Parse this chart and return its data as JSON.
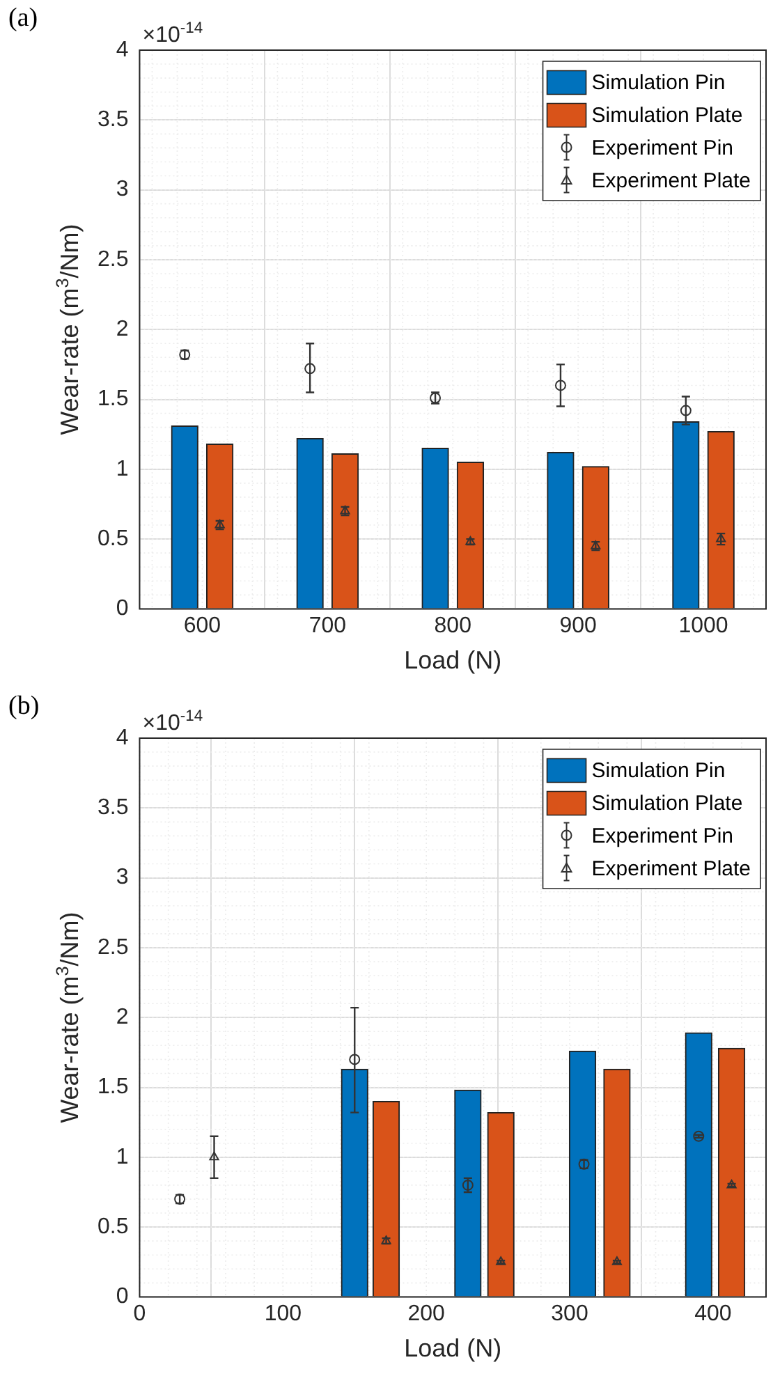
{
  "chart_data": [
    {
      "type": "bar",
      "title": "(a)",
      "xlabel": "Load (N)",
      "ylabel": "Wear-rate (m$^{3}$/Nm)",
      "annotations": [
        "×10$^{-14}$"
      ],
      "xlim": [
        550,
        1050
      ],
      "xticks": [
        600,
        700,
        800,
        900,
        1000
      ],
      "ylim": [
        0,
        4
      ],
      "yticks": [
        0,
        0.5,
        1,
        1.5,
        2,
        2.5,
        3,
        3.5,
        4
      ],
      "grid": true,
      "legend": "top right",
      "series": [
        {
          "name": "Simulation Pin",
          "color": "#0072bd",
          "x": [
            586,
            686,
            786,
            886,
            986
          ],
          "values": [
            1.31,
            1.22,
            1.15,
            1.12,
            1.34
          ]
        },
        {
          "name": "Simulation Plate",
          "color": "#d95319",
          "x": [
            614,
            714,
            814,
            914,
            1014
          ],
          "values": [
            1.18,
            1.11,
            1.05,
            1.02,
            1.27
          ]
        },
        {
          "name": "Experiment Pin",
          "type": "scatter",
          "marker": "circle",
          "color": "#333333",
          "x": [
            586,
            686,
            786,
            886,
            986
          ],
          "values": [
            1.82,
            1.72,
            1.51,
            1.6,
            1.42
          ],
          "errors": [
            0.03,
            [
              1.55,
              1.9
            ],
            0.04,
            [
              1.45,
              1.75
            ],
            0.1
          ]
        },
        {
          "name": "Experiment Plate",
          "type": "scatter",
          "marker": "triangle",
          "color": "#333333",
          "x": [
            614,
            714,
            814,
            914,
            1014
          ],
          "values": [
            0.6,
            0.7,
            0.48,
            0.45,
            0.5
          ],
          "errors": [
            0.03,
            0.03,
            0.02,
            0.03,
            0.04
          ]
        }
      ]
    },
    {
      "type": "bar",
      "title": "(b)",
      "xlabel": "Load (N)",
      "ylabel": "Wear-rate (m$^{3}$/Nm)",
      "annotations": [
        "×10$^{-14}$"
      ],
      "xlim": [
        0,
        437
      ],
      "xticks": [
        0,
        100,
        200,
        300,
        400
      ],
      "ylim": [
        0,
        4
      ],
      "yticks": [
        0,
        0.5,
        1,
        1.5,
        2,
        2.5,
        3,
        3.5,
        4
      ],
      "grid": true,
      "legend": "top right",
      "series": [
        {
          "name": "Simulation Pin",
          "color": "#0072bd",
          "x": [
            150,
            229,
            309,
            390
          ],
          "values": [
            1.63,
            1.48,
            1.76,
            1.89
          ]
        },
        {
          "name": "Simulation Plate",
          "color": "#d95319",
          "x": [
            172,
            252,
            333,
            413
          ],
          "values": [
            1.4,
            1.32,
            1.63,
            1.78
          ]
        },
        {
          "name": "Experiment Pin",
          "type": "scatter",
          "marker": "circle",
          "color": "#333333",
          "x": [
            28,
            150,
            229,
            310,
            390
          ],
          "values": [
            0.7,
            1.7,
            0.8,
            0.95,
            1.15
          ],
          "errors": [
            0.03,
            [
              1.32,
              2.07
            ],
            0.05,
            0.03,
            0.01
          ]
        },
        {
          "name": "Experiment Plate",
          "type": "scatter",
          "marker": "triangle",
          "color": "#333333",
          "x": [
            52,
            172,
            252,
            333,
            413
          ],
          "values": [
            1.0,
            0.4,
            0.25,
            0.25,
            0.8
          ],
          "errors": [
            [
              0.85,
              1.15
            ],
            0.02,
            0.01,
            0.01,
            0.01
          ]
        }
      ]
    }
  ]
}
